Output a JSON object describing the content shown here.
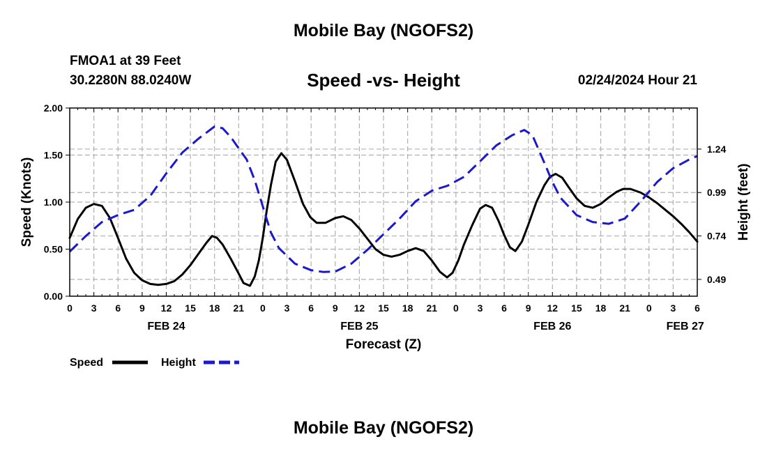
{
  "header": {
    "title": "Mobile Bay (NGOFS2)",
    "station": "FMOA1 at 39 Feet",
    "coords": "30.2280N  88.0240W",
    "subtitle": "Speed -vs- Height",
    "datetime": "02/24/2024 Hour 21"
  },
  "footer": {
    "title": "Mobile Bay (NGOFS2)"
  },
  "colors": {
    "speed": "#000000",
    "height": "#1a1acc",
    "grid": "#b0b0b0"
  },
  "chart_data": {
    "type": "line",
    "xlabel": "Forecast (Z)",
    "ylabel_left": "Speed (Knots)",
    "ylabel_right": "Height (feet)",
    "x_range_hours": [
      0,
      78
    ],
    "x_ticks": [
      {
        "h": 0,
        "label": "0"
      },
      {
        "h": 3,
        "label": "3"
      },
      {
        "h": 6,
        "label": "6"
      },
      {
        "h": 9,
        "label": "9"
      },
      {
        "h": 12,
        "label": "12"
      },
      {
        "h": 15,
        "label": "15"
      },
      {
        "h": 18,
        "label": "18"
      },
      {
        "h": 21,
        "label": "21"
      },
      {
        "h": 24,
        "label": "0"
      },
      {
        "h": 27,
        "label": "3"
      },
      {
        "h": 30,
        "label": "6"
      },
      {
        "h": 33,
        "label": "9"
      },
      {
        "h": 36,
        "label": "12"
      },
      {
        "h": 39,
        "label": "15"
      },
      {
        "h": 42,
        "label": "18"
      },
      {
        "h": 45,
        "label": "21"
      },
      {
        "h": 48,
        "label": "0"
      },
      {
        "h": 51,
        "label": "3"
      },
      {
        "h": 54,
        "label": "6"
      },
      {
        "h": 57,
        "label": "9"
      },
      {
        "h": 60,
        "label": "12"
      },
      {
        "h": 63,
        "label": "15"
      },
      {
        "h": 66,
        "label": "18"
      },
      {
        "h": 69,
        "label": "21"
      },
      {
        "h": 72,
        "label": "0"
      },
      {
        "h": 75,
        "label": "3"
      },
      {
        "h": 78,
        "label": "6"
      }
    ],
    "date_labels": [
      {
        "h": 12,
        "label": "FEB 24"
      },
      {
        "h": 36,
        "label": "FEB 25"
      },
      {
        "h": 60,
        "label": "FEB 26"
      },
      {
        "h": 76.5,
        "label": "FEB 27"
      }
    ],
    "y_left": {
      "min": 0,
      "max": 2,
      "ticks": [
        "0.00",
        "0.50",
        "1.00",
        "1.50",
        "2.00"
      ]
    },
    "y_right": {
      "min": 0.3932,
      "max": 1.4764,
      "ticks": [
        "0.49",
        "0.74",
        "0.99",
        "1.24"
      ]
    },
    "grid": true,
    "legend": {
      "position": "bottom-left",
      "items": [
        "Speed",
        "Height"
      ]
    },
    "series": [
      {
        "name": "Speed",
        "axis": "left",
        "style": "solid",
        "points": [
          [
            0,
            0.62
          ],
          [
            1,
            0.82
          ],
          [
            2,
            0.94
          ],
          [
            3,
            0.98
          ],
          [
            4,
            0.96
          ],
          [
            5,
            0.83
          ],
          [
            6,
            0.62
          ],
          [
            7,
            0.4
          ],
          [
            8,
            0.25
          ],
          [
            9,
            0.17
          ],
          [
            10,
            0.13
          ],
          [
            11,
            0.12
          ],
          [
            12,
            0.13
          ],
          [
            13,
            0.16
          ],
          [
            14,
            0.23
          ],
          [
            15,
            0.33
          ],
          [
            16,
            0.45
          ],
          [
            17,
            0.57
          ],
          [
            17.7,
            0.64
          ],
          [
            18.3,
            0.62
          ],
          [
            19,
            0.55
          ],
          [
            20,
            0.4
          ],
          [
            21,
            0.24
          ],
          [
            21.6,
            0.14
          ],
          [
            22.4,
            0.11
          ],
          [
            23,
            0.21
          ],
          [
            23.5,
            0.38
          ],
          [
            24,
            0.62
          ],
          [
            24.5,
            0.92
          ],
          [
            25,
            1.18
          ],
          [
            25.6,
            1.43
          ],
          [
            26.3,
            1.52
          ],
          [
            27,
            1.45
          ],
          [
            28,
            1.22
          ],
          [
            29,
            0.98
          ],
          [
            29.9,
            0.84
          ],
          [
            30.7,
            0.78
          ],
          [
            31.8,
            0.78
          ],
          [
            33,
            0.83
          ],
          [
            34,
            0.85
          ],
          [
            35,
            0.81
          ],
          [
            36,
            0.72
          ],
          [
            37,
            0.61
          ],
          [
            38,
            0.5
          ],
          [
            39,
            0.44
          ],
          [
            40,
            0.42
          ],
          [
            41,
            0.44
          ],
          [
            42,
            0.48
          ],
          [
            43,
            0.51
          ],
          [
            44,
            0.48
          ],
          [
            45,
            0.38
          ],
          [
            46,
            0.26
          ],
          [
            46.9,
            0.2
          ],
          [
            47.6,
            0.25
          ],
          [
            48.3,
            0.38
          ],
          [
            49,
            0.55
          ],
          [
            50,
            0.75
          ],
          [
            51,
            0.93
          ],
          [
            51.7,
            0.97
          ],
          [
            52.5,
            0.94
          ],
          [
            53.3,
            0.8
          ],
          [
            54,
            0.65
          ],
          [
            54.7,
            0.52
          ],
          [
            55.4,
            0.48
          ],
          [
            56.2,
            0.58
          ],
          [
            57,
            0.76
          ],
          [
            58,
            1.0
          ],
          [
            59,
            1.18
          ],
          [
            59.7,
            1.27
          ],
          [
            60.4,
            1.3
          ],
          [
            61.2,
            1.26
          ],
          [
            62,
            1.16
          ],
          [
            63,
            1.04
          ],
          [
            64,
            0.96
          ],
          [
            65,
            0.94
          ],
          [
            66,
            0.98
          ],
          [
            67,
            1.05
          ],
          [
            68,
            1.11
          ],
          [
            68.8,
            1.14
          ],
          [
            69.7,
            1.14
          ],
          [
            71,
            1.1
          ],
          [
            72,
            1.05
          ],
          [
            73,
            0.99
          ],
          [
            74,
            0.92
          ],
          [
            75,
            0.85
          ],
          [
            76,
            0.77
          ],
          [
            77,
            0.68
          ],
          [
            78,
            0.58
          ]
        ]
      },
      {
        "name": "Height",
        "axis": "right",
        "style": "dashed",
        "points": [
          [
            0,
            0.65
          ],
          [
            2,
            0.74
          ],
          [
            4,
            0.82
          ],
          [
            6,
            0.86
          ],
          [
            8,
            0.89
          ],
          [
            10,
            0.97
          ],
          [
            12,
            1.1
          ],
          [
            14,
            1.22
          ],
          [
            16,
            1.3
          ],
          [
            18,
            1.37
          ],
          [
            19,
            1.36
          ],
          [
            20,
            1.31
          ],
          [
            22,
            1.18
          ],
          [
            23,
            1.06
          ],
          [
            24,
            0.91
          ],
          [
            25,
            0.76
          ],
          [
            26,
            0.67
          ],
          [
            28,
            0.58
          ],
          [
            30,
            0.543
          ],
          [
            31.5,
            0.533
          ],
          [
            33,
            0.535
          ],
          [
            35,
            0.58
          ],
          [
            37,
            0.66
          ],
          [
            39,
            0.75
          ],
          [
            41,
            0.84
          ],
          [
            43,
            0.94
          ],
          [
            45,
            1.0
          ],
          [
            47,
            1.03
          ],
          [
            49,
            1.08
          ],
          [
            51,
            1.17
          ],
          [
            53,
            1.26
          ],
          [
            55,
            1.32
          ],
          [
            56.5,
            1.35
          ],
          [
            57.5,
            1.32
          ],
          [
            59,
            1.16
          ],
          [
            60,
            1.05
          ],
          [
            61,
            0.96
          ],
          [
            63,
            0.86
          ],
          [
            65,
            0.82
          ],
          [
            67,
            0.81
          ],
          [
            69,
            0.84
          ],
          [
            71,
            0.94
          ],
          [
            73,
            1.05
          ],
          [
            75,
            1.13
          ],
          [
            77,
            1.18
          ],
          [
            78,
            1.2
          ]
        ]
      }
    ]
  }
}
